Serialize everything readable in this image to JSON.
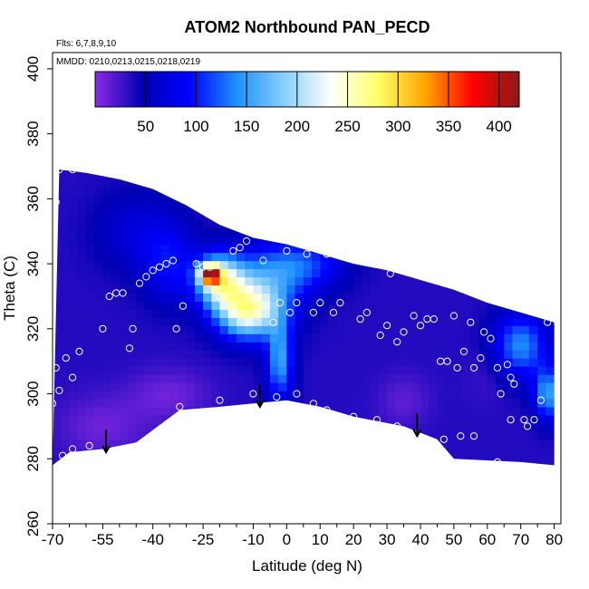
{
  "chart_data": {
    "type": "heatmap",
    "title": "ATOM2 Northbound PAN_PECD",
    "notes": [
      "Flts: 6,7,8,9,10",
      "MMDD: 0210,0213,0215,0218,0219"
    ],
    "xlabel": "Latitude (deg N)",
    "ylabel": "Theta (C)",
    "xlim": [
      -70,
      82
    ],
    "ylim": [
      260,
      405
    ],
    "x_ticks": [
      -70,
      -55,
      -40,
      -25,
      -10,
      0,
      10,
      20,
      30,
      40,
      50,
      60,
      70,
      80
    ],
    "x_tick_labels": [
      "-70",
      "-55",
      "-40",
      "-25",
      "-10",
      "0",
      "10",
      "20",
      "30",
      "40",
      "50",
      "60",
      "70",
      "80"
    ],
    "x_minor_ticks": [
      -65,
      -60,
      -50,
      -45,
      -35,
      -30,
      -20,
      -15,
      -5,
      5,
      15,
      25,
      35,
      45,
      55,
      65,
      75
    ],
    "y_ticks": [
      260,
      280,
      300,
      320,
      340,
      360,
      380,
      400
    ],
    "y_tick_labels": [
      "260",
      "280",
      "300",
      "320",
      "340",
      "360",
      "380",
      "400"
    ],
    "colorbar": {
      "range": [
        0,
        420
      ],
      "ticks": [
        50,
        100,
        150,
        200,
        250,
        300,
        350,
        400
      ],
      "tick_labels": [
        "50",
        "100",
        "150",
        "200",
        "250",
        "300",
        "350",
        "400"
      ],
      "colors": [
        "#8a2be2",
        "#0000b4",
        "#0000ff",
        "#1e90ff",
        "#87cefa",
        "#ffffff",
        "#ffff66",
        "#ffa500",
        "#ff0000",
        "#8b1a1a"
      ]
    },
    "field": {
      "top_boundary": [
        [
          -68,
          369
        ],
        [
          -60,
          368
        ],
        [
          -50,
          366
        ],
        [
          -40,
          363
        ],
        [
          -30,
          358
        ],
        [
          -20,
          352
        ],
        [
          -10,
          348
        ],
        [
          0,
          346
        ],
        [
          10,
          343
        ],
        [
          20,
          340
        ],
        [
          30,
          338
        ],
        [
          40,
          335
        ],
        [
          50,
          332
        ],
        [
          60,
          328
        ],
        [
          70,
          325
        ],
        [
          80,
          322
        ]
      ],
      "bottom_boundary": [
        [
          -70,
          278
        ],
        [
          -65,
          282
        ],
        [
          -55,
          283
        ],
        [
          -45,
          285
        ],
        [
          -32,
          295
        ],
        [
          -20,
          296
        ],
        [
          -10,
          297
        ],
        [
          0,
          298
        ],
        [
          10,
          296
        ],
        [
          20,
          293
        ],
        [
          35,
          290
        ],
        [
          45,
          286
        ],
        [
          50,
          280
        ],
        [
          70,
          279
        ],
        [
          80,
          278
        ]
      ],
      "base_value": 35,
      "blobs": [
        {
          "lat": -23,
          "theta": 337,
          "value": 290,
          "r_lat": 3,
          "r_theta": 3
        },
        {
          "lat": -20,
          "theta": 335,
          "value": 210,
          "r_lat": 7,
          "r_theta": 8
        },
        {
          "lat": -12,
          "theta": 325,
          "value": 190,
          "r_lat": 9,
          "r_theta": 8
        },
        {
          "lat": -8,
          "theta": 332,
          "value": 140,
          "r_lat": 12,
          "r_theta": 12
        },
        {
          "lat": -2,
          "theta": 310,
          "value": 150,
          "r_lat": 4,
          "r_theta": 12
        },
        {
          "lat": -35,
          "theta": 340,
          "value": 90,
          "r_lat": 8,
          "r_theta": 12
        },
        {
          "lat": -45,
          "theta": 350,
          "value": 70,
          "r_lat": 12,
          "r_theta": 12
        },
        {
          "lat": 5,
          "theta": 340,
          "value": 110,
          "r_lat": 12,
          "r_theta": 8
        },
        {
          "lat": 70,
          "theta": 315,
          "value": 140,
          "r_lat": 8,
          "r_theta": 10
        },
        {
          "lat": 78,
          "theta": 300,
          "value": 150,
          "r_lat": 4,
          "r_theta": 8
        },
        {
          "lat": -55,
          "theta": 290,
          "value": 10,
          "r_lat": 14,
          "r_theta": 10
        },
        {
          "lat": -35,
          "theta": 300,
          "value": 10,
          "r_lat": 12,
          "r_theta": 8
        },
        {
          "lat": 35,
          "theta": 298,
          "value": 15,
          "r_lat": 8,
          "r_theta": 8
        },
        {
          "lat": 60,
          "theta": 305,
          "value": 25,
          "r_lat": 6,
          "r_theta": 8
        }
      ]
    },
    "points": [
      {
        "lat": -68,
        "theta": 369
      },
      {
        "lat": -64,
        "theta": 369
      },
      {
        "lat": -62,
        "theta": 370
      },
      {
        "lat": -70,
        "theta": 342
      },
      {
        "lat": -70,
        "theta": 337
      },
      {
        "lat": -69,
        "theta": 359
      },
      {
        "lat": -69,
        "theta": 308
      },
      {
        "lat": -68,
        "theta": 301
      },
      {
        "lat": -70,
        "theta": 297
      },
      {
        "lat": -66,
        "theta": 311
      },
      {
        "lat": -64,
        "theta": 305
      },
      {
        "lat": -62,
        "theta": 313
      },
      {
        "lat": -67,
        "theta": 281
      },
      {
        "lat": -64,
        "theta": 283
      },
      {
        "lat": -59,
        "theta": 284
      },
      {
        "lat": -55,
        "theta": 320
      },
      {
        "lat": -53,
        "theta": 330
      },
      {
        "lat": -51,
        "theta": 331
      },
      {
        "lat": -49,
        "theta": 331
      },
      {
        "lat": -47,
        "theta": 314
      },
      {
        "lat": -46,
        "theta": 320
      },
      {
        "lat": -44,
        "theta": 334
      },
      {
        "lat": -42,
        "theta": 336
      },
      {
        "lat": -40,
        "theta": 338
      },
      {
        "lat": -38,
        "theta": 339
      },
      {
        "lat": -36,
        "theta": 340
      },
      {
        "lat": -34,
        "theta": 341
      },
      {
        "lat": -33,
        "theta": 320
      },
      {
        "lat": -31,
        "theta": 327
      },
      {
        "lat": -27,
        "theta": 340
      },
      {
        "lat": -25,
        "theta": 339
      },
      {
        "lat": -23,
        "theta": 339
      },
      {
        "lat": -20,
        "theta": 330
      },
      {
        "lat": -16,
        "theta": 344
      },
      {
        "lat": -14,
        "theta": 345
      },
      {
        "lat": -12,
        "theta": 347
      },
      {
        "lat": -10,
        "theta": 329
      },
      {
        "lat": -7,
        "theta": 341
      },
      {
        "lat": -4,
        "theta": 322
      },
      {
        "lat": -2,
        "theta": 328
      },
      {
        "lat": 0,
        "theta": 344
      },
      {
        "lat": 1,
        "theta": 325
      },
      {
        "lat": 3,
        "theta": 328
      },
      {
        "lat": 6,
        "theta": 343
      },
      {
        "lat": 8,
        "theta": 325
      },
      {
        "lat": 10,
        "theta": 328
      },
      {
        "lat": 12,
        "theta": 343
      },
      {
        "lat": 14,
        "theta": 325
      },
      {
        "lat": 16,
        "theta": 328
      },
      {
        "lat": 18,
        "theta": 344
      },
      {
        "lat": 20,
        "theta": 344
      },
      {
        "lat": 22,
        "theta": 323
      },
      {
        "lat": 24,
        "theta": 325
      },
      {
        "lat": 26,
        "theta": 346
      },
      {
        "lat": 28,
        "theta": 318
      },
      {
        "lat": 30,
        "theta": 321
      },
      {
        "lat": 31,
        "theta": 337
      },
      {
        "lat": 33,
        "theta": 316
      },
      {
        "lat": 35,
        "theta": 319
      },
      {
        "lat": 38,
        "theta": 324
      },
      {
        "lat": 40,
        "theta": 321
      },
      {
        "lat": 42,
        "theta": 323
      },
      {
        "lat": 44,
        "theta": 323
      },
      {
        "lat": 46,
        "theta": 310
      },
      {
        "lat": 48,
        "theta": 310
      },
      {
        "lat": 50,
        "theta": 324
      },
      {
        "lat": 51,
        "theta": 308
      },
      {
        "lat": 53,
        "theta": 313
      },
      {
        "lat": 55,
        "theta": 322
      },
      {
        "lat": 56,
        "theta": 308
      },
      {
        "lat": 58,
        "theta": 311
      },
      {
        "lat": 59,
        "theta": 319
      },
      {
        "lat": 61,
        "theta": 317
      },
      {
        "lat": 63,
        "theta": 308
      },
      {
        "lat": 64,
        "theta": 300
      },
      {
        "lat": 66,
        "theta": 309
      },
      {
        "lat": 67,
        "theta": 305
      },
      {
        "lat": 68,
        "theta": 303
      },
      {
        "lat": 67,
        "theta": 292
      },
      {
        "lat": 71,
        "theta": 292
      },
      {
        "lat": 72,
        "theta": 290
      },
      {
        "lat": 74,
        "theta": 292
      },
      {
        "lat": 76,
        "theta": 298
      },
      {
        "lat": 78,
        "theta": 322
      },
      {
        "lat": 81,
        "theta": 322
      },
      {
        "lat": 79,
        "theta": 325
      },
      {
        "lat": -42,
        "theta": 285
      },
      {
        "lat": -32,
        "theta": 296
      },
      {
        "lat": -20,
        "theta": 298
      },
      {
        "lat": -10,
        "theta": 300
      },
      {
        "lat": -3,
        "theta": 299
      },
      {
        "lat": 3,
        "theta": 300
      },
      {
        "lat": 8,
        "theta": 297
      },
      {
        "lat": 12,
        "theta": 295
      },
      {
        "lat": 20,
        "theta": 293
      },
      {
        "lat": 27,
        "theta": 292
      },
      {
        "lat": 33,
        "theta": 290
      },
      {
        "lat": 47,
        "theta": 286
      },
      {
        "lat": 52,
        "theta": 287
      },
      {
        "lat": 56,
        "theta": 287
      },
      {
        "lat": 63,
        "theta": 279
      }
    ],
    "arrows": [
      {
        "lat": -54,
        "theta_from": 289,
        "theta_to": 282
      },
      {
        "lat": -8,
        "theta_from": 303,
        "theta_to": 296
      },
      {
        "lat": 39,
        "theta_from": 294,
        "theta_to": 287
      }
    ]
  }
}
